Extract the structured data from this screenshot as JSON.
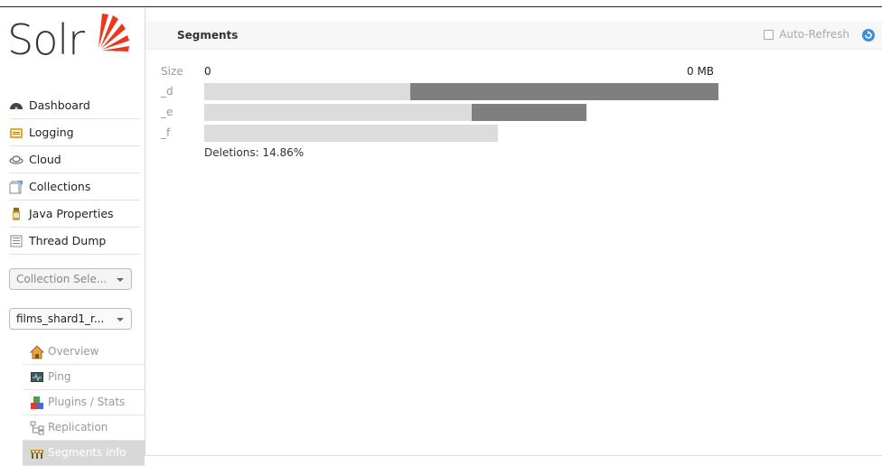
{
  "app": {
    "logo_text": "Solr"
  },
  "nav": {
    "items": [
      {
        "label": "Dashboard",
        "icon": "dashboard-icon"
      },
      {
        "label": "Logging",
        "icon": "logging-icon"
      },
      {
        "label": "Cloud",
        "icon": "cloud-icon"
      },
      {
        "label": "Collections",
        "icon": "collections-icon"
      },
      {
        "label": "Java Properties",
        "icon": "java-properties-icon"
      },
      {
        "label": "Thread Dump",
        "icon": "thread-dump-icon"
      }
    ]
  },
  "collection_selector": {
    "value": "Collection Sele..."
  },
  "core_selector": {
    "value": "films_shard1_r..."
  },
  "core_menu": {
    "items": [
      {
        "label": "Overview",
        "icon": "overview-icon"
      },
      {
        "label": "Ping",
        "icon": "ping-icon"
      },
      {
        "label": "Plugins / Stats",
        "icon": "plugins-icon"
      },
      {
        "label": "Replication",
        "icon": "replication-icon"
      },
      {
        "label": "Segments info",
        "icon": "segments-icon",
        "active": true
      }
    ]
  },
  "main": {
    "title": "Segments",
    "auto_refresh_label": "Auto-Refresh",
    "size_label": "Size",
    "size_min": "0",
    "size_max": "0 MB",
    "deletions_text": "Deletions: 14.86%"
  },
  "segments": [
    {
      "name": "_d",
      "size_fraction": 1.0,
      "live_fraction": 0.4
    },
    {
      "name": "_e",
      "size_fraction": 0.743,
      "live_fraction": 0.7
    },
    {
      "name": "_f",
      "size_fraction": 0.572,
      "live_fraction": 1.0
    }
  ],
  "colors": {
    "bar_live": "#dcdcdc",
    "bar_deleted": "#7f7f7f",
    "refresh_accent": "#3d8fd6"
  }
}
